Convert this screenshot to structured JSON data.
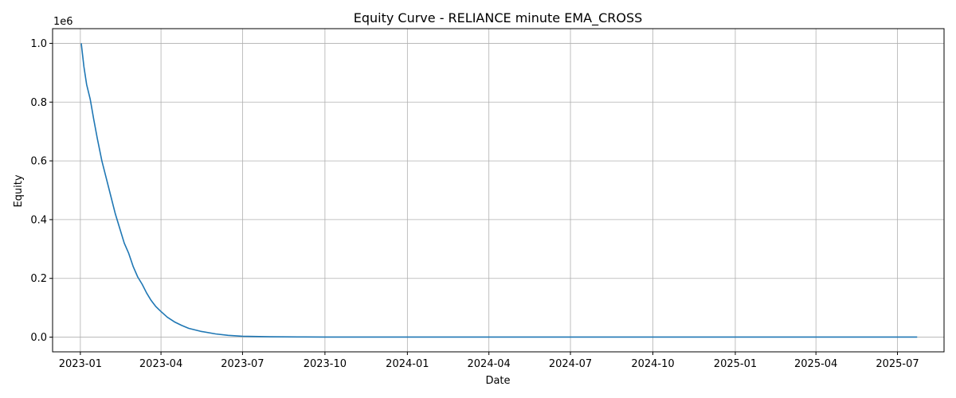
{
  "chart_data": {
    "type": "line",
    "title": "Equity Curve - RELIANCE minute EMA_CROSS",
    "xlabel": "Date",
    "ylabel": "Equity",
    "y_offset_label": "1e6",
    "x_ticks": [
      "2023-01",
      "2023-04",
      "2023-07",
      "2023-10",
      "2024-01",
      "2024-04",
      "2024-07",
      "2024-10",
      "2025-01",
      "2025-04",
      "2025-07"
    ],
    "y_ticks": [
      "0.0",
      "0.2",
      "0.4",
      "0.6",
      "0.8",
      "1.0"
    ],
    "y_scale": 1000000,
    "xlim": [
      "2022-12-01",
      "2025-08-22"
    ],
    "ylim": [
      -50000,
      1050000
    ],
    "grid": true,
    "line_color": "#1f77b4",
    "series": [
      {
        "x": [
          "2023-01-02",
          "2023-01-05",
          "2023-01-08",
          "2023-01-12",
          "2023-01-16",
          "2023-01-20",
          "2023-01-25",
          "2023-01-30",
          "2023-02-04",
          "2023-02-09",
          "2023-02-14",
          "2023-02-19",
          "2023-02-24",
          "2023-03-01",
          "2023-03-06",
          "2023-03-11",
          "2023-03-16",
          "2023-03-21",
          "2023-03-26",
          "2023-03-31",
          "2023-04-08",
          "2023-04-16",
          "2023-04-24",
          "2023-05-02",
          "2023-05-15",
          "2023-06-01",
          "2023-06-15",
          "2023-07-01",
          "2023-08-01",
          "2023-09-01",
          "2023-10-01",
          "2024-01-01",
          "2024-07-01",
          "2025-01-01",
          "2025-07-23"
        ],
        "y": [
          1000000,
          920000,
          860000,
          810000,
          740000,
          675000,
          600000,
          540000,
          480000,
          420000,
          370000,
          320000,
          285000,
          240000,
          205000,
          180000,
          150000,
          125000,
          105000,
          90000,
          68000,
          52000,
          40000,
          30000,
          20000,
          11000,
          6000,
          3000,
          1200,
          600,
          400,
          300,
          300,
          300,
          300
        ]
      }
    ]
  }
}
